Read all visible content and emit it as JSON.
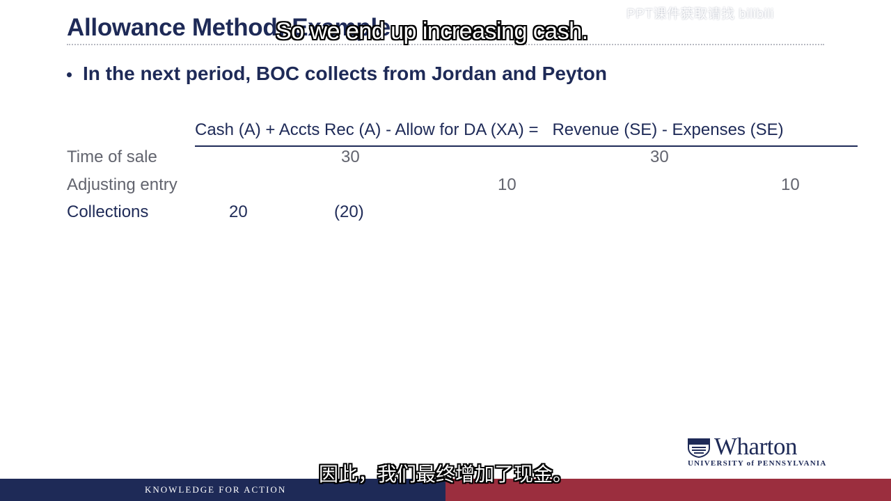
{
  "slide": {
    "title": "Allowance Method: Example",
    "bullet": "In the next period, BOC collects from Jordan and Peyton",
    "equation_header": "Cash (A) + Accts Rec (A) - Allow for DA (XA) =   Revenue (SE) - Expenses (SE)",
    "rows": [
      {
        "label": "Time of sale",
        "cash": "",
        "accts_rec": "30",
        "allow_da": "",
        "revenue": "30",
        "expenses": ""
      },
      {
        "label": "Adjusting entry",
        "cash": "",
        "accts_rec": "",
        "allow_da": "10",
        "revenue": "",
        "expenses": "10"
      },
      {
        "label": "Collections",
        "cash": "20",
        "accts_rec": "(20)",
        "allow_da": "",
        "revenue": "",
        "expenses": ""
      }
    ]
  },
  "logo": {
    "name": "Wharton",
    "subtitle": "UNIVERSITY of PENNSYLVANIA"
  },
  "footer": {
    "tagline": "KNOWLEDGE FOR ACTION"
  },
  "overlays": {
    "subtitle_en": "So we end up increasing cash.",
    "subtitle_zh": "因此，我们最终增加了现金。",
    "watermark": "PPT课件获取请找 bilibili"
  },
  "colors": {
    "navy": "#1e2a57",
    "footer_red": "#9b2e3e",
    "muted_text": "#62646e"
  }
}
